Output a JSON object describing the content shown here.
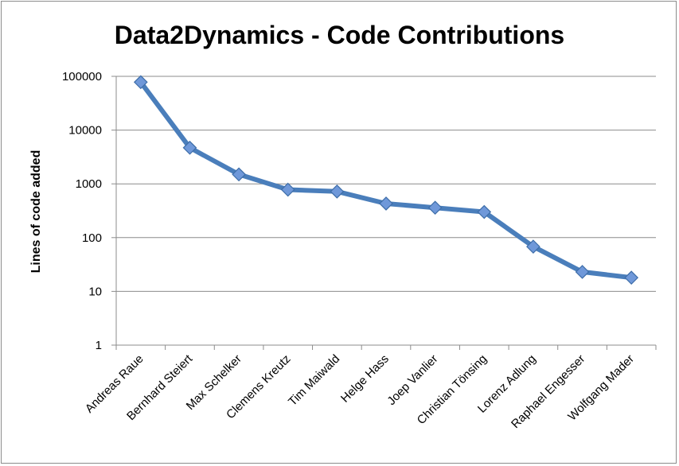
{
  "chart_data": {
    "type": "line",
    "title": "Data2Dynamics - Code Contributions",
    "ylabel": "Lines of code added",
    "xlabel": "",
    "yscale": "log",
    "ylim": [
      1,
      100000
    ],
    "yticks": [
      "1",
      "10",
      "100",
      "1000",
      "10000",
      "100000"
    ],
    "grid": true,
    "legend": "none",
    "categories": [
      "Andreas Raue",
      "Bernhard Steiert",
      "Max Schelker",
      "Clemens Kreutz",
      "Tim Maiwald",
      "Helge Hass",
      "Joep Vanlier",
      "Christian Tönsing",
      "Lorenz Adlung",
      "Raphael Engesser",
      "Wolfgang Mader"
    ],
    "series": [
      {
        "values": [
          78000,
          4700,
          1500,
          780,
          720,
          430,
          360,
          300,
          68,
          23,
          18
        ]
      }
    ],
    "colors": {
      "line": "#4a7ebb",
      "marker_fill": "#6f98d9",
      "marker_edge": "#3d6da8",
      "grid": "#8c8c8c",
      "axis": "#8c8c8c"
    }
  }
}
